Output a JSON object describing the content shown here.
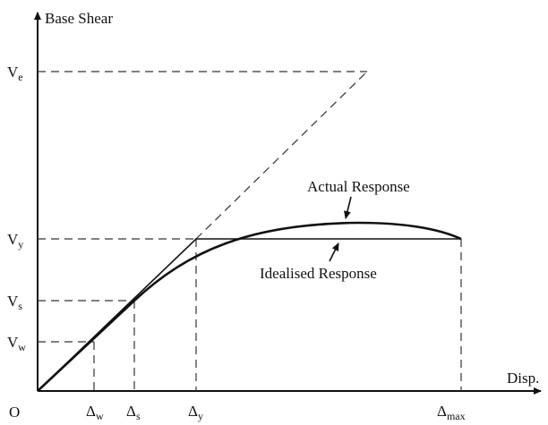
{
  "axes": {
    "y_label": "Base Shear",
    "x_label": "Disp.",
    "origin": "O"
  },
  "y_levels": [
    {
      "main": "V",
      "sub": "e"
    },
    {
      "main": "V",
      "sub": "y"
    },
    {
      "main": "V",
      "sub": "s"
    },
    {
      "main": "V",
      "sub": "w"
    }
  ],
  "x_levels": [
    {
      "main": "Δ",
      "sub": "w"
    },
    {
      "main": "Δ",
      "sub": "s"
    },
    {
      "main": "Δ",
      "sub": "y"
    },
    {
      "main": "Δ",
      "sub": "max"
    }
  ],
  "curves": {
    "actual": "Actual Response",
    "idealised": "Idealised Response"
  }
}
